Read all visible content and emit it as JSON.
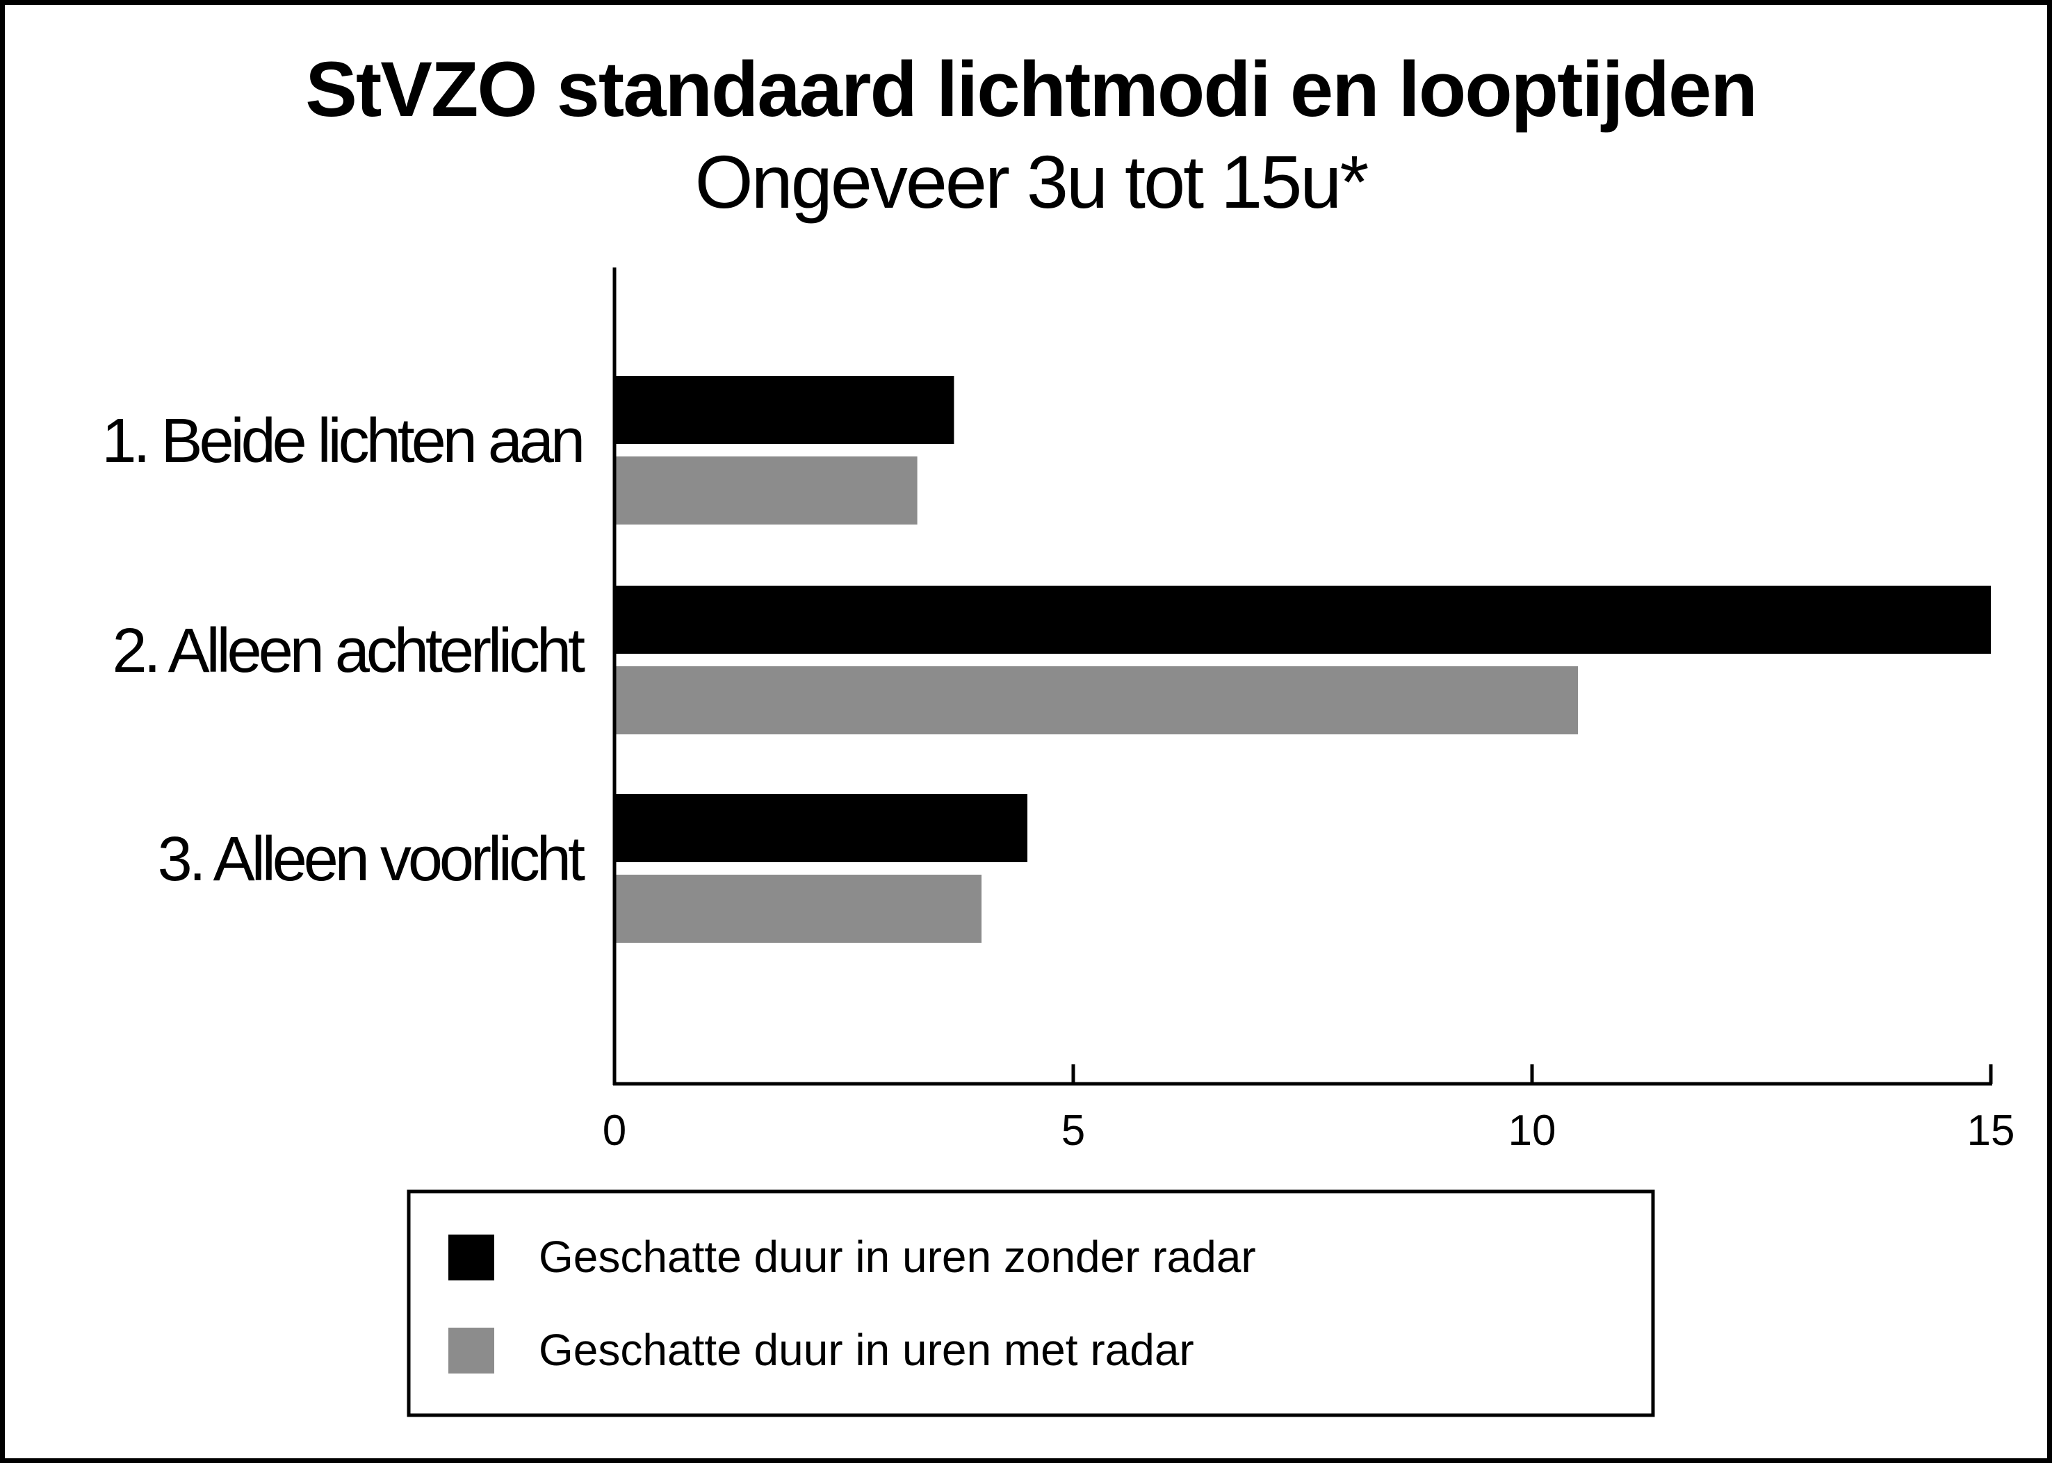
{
  "colors": {
    "zonder_radar": "#000000",
    "met_radar": "#8c8c8c",
    "axis": "#000000",
    "background": "#ffffff"
  },
  "chart_data": {
    "type": "bar",
    "orientation": "horizontal",
    "title": "StVZO standaard lichtmodi en looptijden",
    "subtitle": "Ongeveer 3u tot 15u*",
    "categories": [
      "1. Beide lichten aan",
      "2. Alleen achterlicht",
      "3. Alleen voorlicht"
    ],
    "series": [
      {
        "name": "Geschatte duur in uren zonder radar",
        "values": [
          3.7,
          15,
          4.5
        ]
      },
      {
        "name": "Geschatte duur in uren met radar",
        "values": [
          3.3,
          10.5,
          4.0
        ]
      }
    ],
    "xlim": [
      0,
      15
    ],
    "xticks": [
      "0",
      "5",
      "10",
      "15"
    ],
    "xlabel": "",
    "ylabel": "",
    "grid": false,
    "legend_position": "bottom"
  }
}
